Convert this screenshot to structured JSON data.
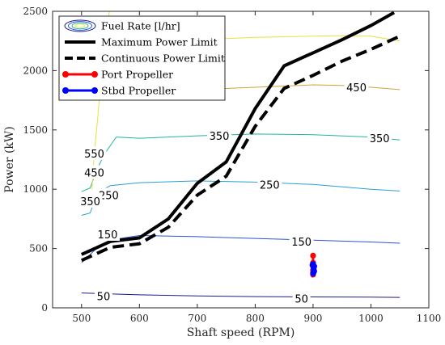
{
  "chart_data": {
    "type": "line",
    "xlabel": "Shaft speed (RPM)",
    "ylabel": "Power (kW)",
    "xlim": [
      450,
      1100
    ],
    "ylim": [
      0,
      2500
    ],
    "xticks": [
      500,
      600,
      700,
      800,
      900,
      1000,
      1100
    ],
    "yticks": [
      0,
      500,
      1000,
      1500,
      2000,
      2500
    ],
    "grid": false,
    "legend_position": "top-left",
    "legend": [
      {
        "label": "Fuel Rate [l/hr]",
        "kind": "contour"
      },
      {
        "label": "Maximum Power Limit",
        "kind": "solid"
      },
      {
        "label": "Continuous Power Limit",
        "kind": "dashed"
      },
      {
        "label": "Port Propeller",
        "kind": "marker",
        "color": "#ff0000"
      },
      {
        "label": "Stbd Propeller",
        "kind": "marker",
        "color": "#0000ff"
      }
    ],
    "series": [
      {
        "name": "Maximum Power Limit",
        "style": "solid",
        "color": "#000000",
        "x": [
          500,
          550,
          600,
          650,
          700,
          750,
          800,
          850,
          900,
          950,
          1000,
          1040
        ],
        "y": [
          450,
          560,
          590,
          750,
          1050,
          1230,
          1680,
          2040,
          2150,
          2260,
          2380,
          2490
        ]
      },
      {
        "name": "Continuous Power Limit",
        "style": "dashed",
        "color": "#000000",
        "x": [
          500,
          550,
          600,
          650,
          700,
          750,
          800,
          850,
          900,
          950,
          1000,
          1050
        ],
        "y": [
          400,
          510,
          540,
          680,
          950,
          1110,
          1530,
          1850,
          1960,
          2080,
          2180,
          2290
        ]
      },
      {
        "name": "Port Propeller",
        "style": "marker",
        "color": "#ff0000",
        "x": [
          900,
          900,
          900,
          900,
          900,
          900
        ],
        "y": [
          440,
          380,
          350,
          320,
          300,
          280
        ]
      },
      {
        "name": "Stbd Propeller",
        "style": "marker",
        "color": "#0000ff",
        "x": [
          900,
          902,
          901,
          902,
          901,
          900,
          899
        ],
        "y": [
          370,
          350,
          330,
          310,
          300,
          290,
          360
        ]
      }
    ],
    "contours": [
      {
        "level": "50",
        "color": "#1b1c8c",
        "x": [
          500,
          600,
          700,
          800,
          900,
          1000,
          1050
        ],
        "y": [
          125,
          110,
          100,
          95,
          92,
          90,
          88
        ]
      },
      {
        "level": "150",
        "color": "#2c52d8",
        "x": [
          500,
          515,
          530,
          560,
          600,
          700,
          800,
          900,
          1000,
          1050
        ],
        "y": [
          380,
          450,
          520,
          580,
          610,
          600,
          585,
          570,
          555,
          545
        ]
      },
      {
        "level": "250",
        "color": "#2e9fd4",
        "x": [
          500,
          515,
          522,
          530,
          550,
          600,
          700,
          800,
          900,
          1000,
          1050
        ],
        "y": [
          780,
          800,
          900,
          980,
          1030,
          1055,
          1070,
          1060,
          1040,
          1000,
          985
        ]
      },
      {
        "level": "350",
        "color": "#22b59d",
        "x": [
          500,
          515,
          525,
          540,
          560,
          600,
          700,
          800,
          900,
          1000,
          1050
        ],
        "y": [
          980,
          1010,
          1150,
          1300,
          1440,
          1430,
          1450,
          1465,
          1460,
          1440,
          1415
        ]
      },
      {
        "level": "450",
        "color": "#cfa43b",
        "x": [
          590,
          620,
          700,
          800,
          900,
          950,
          1000,
          1050
        ],
        "y": [
          1790,
          1810,
          1840,
          1860,
          1880,
          1875,
          1860,
          1840
        ]
      },
      {
        "level": "550",
        "color": "#e8e23a",
        "x": [
          518,
          522,
          528,
          533,
          540,
          545,
          548
        ],
        "y": [
          1000,
          1300,
          1600,
          1900,
          2200,
          2400,
          2500
        ]
      },
      {
        "level": "",
        "color": "#e8e23a",
        "x": [
          580,
          650,
          700,
          800,
          900,
          950,
          1000,
          1050
        ],
        "y": [
          2200,
          2230,
          2260,
          2280,
          2290,
          2295,
          2290,
          2250
        ]
      }
    ],
    "contour_labels": [
      {
        "text": "50",
        "x": 538,
        "y": 100
      },
      {
        "text": "50",
        "x": 880,
        "y": 80
      },
      {
        "text": "150",
        "x": 545,
        "y": 620
      },
      {
        "text": "150",
        "x": 880,
        "y": 560
      },
      {
        "text": "250",
        "x": 547,
        "y": 950
      },
      {
        "text": "250",
        "x": 825,
        "y": 1040
      },
      {
        "text": "350",
        "x": 515,
        "y": 900
      },
      {
        "text": "350",
        "x": 738,
        "y": 1450
      },
      {
        "text": "350",
        "x": 1015,
        "y": 1430
      },
      {
        "text": "450",
        "x": 522,
        "y": 1140
      },
      {
        "text": "450",
        "x": 975,
        "y": 1860
      },
      {
        "text": "550",
        "x": 522,
        "y": 1300
      }
    ]
  }
}
